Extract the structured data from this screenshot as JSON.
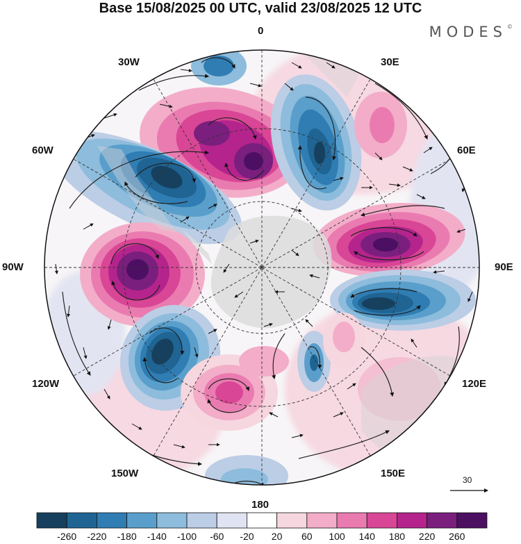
{
  "title": "Base 15/08/2025 00 UTC, valid 23/08/2025 12 UTC",
  "logo": "MODES",
  "logo_mark": "©",
  "grid_labels": {
    "lon_0": "0",
    "lon_30e": "30E",
    "lon_60e": "60E",
    "lon_90e": "90E",
    "lon_120e": "120E",
    "lon_150e": "150E",
    "lon_180": "180",
    "lon_150w": "150W",
    "lon_120w": "120W",
    "lon_90w": "90W",
    "lon_60w": "60W",
    "lon_30w": "30W"
  },
  "reference_vector": "30",
  "colorbar": {
    "ticks": [
      "-260",
      "-220",
      "-180",
      "-140",
      "-100",
      "-60",
      "-20",
      "20",
      "60",
      "100",
      "140",
      "180",
      "220",
      "260"
    ],
    "colors": [
      "#16405e",
      "#1f6493",
      "#2f7db3",
      "#5a9fcb",
      "#8dbcdc",
      "#bccde6",
      "#e0e3f1",
      "#ffffff",
      "#f6d6df",
      "#f3adc8",
      "#ea7bb0",
      "#d94696",
      "#b4248c",
      "#7a1f7e",
      "#4c0f62"
    ]
  },
  "chart_data": {
    "type": "heatmap",
    "projection": "south-polar stereographic",
    "title": "Base 15/08/2025 00 UTC, valid 23/08/2025 12 UTC",
    "field": "shaded anomaly with wind vectors",
    "vector_reference": 30,
    "anomalies": [
      {
        "sign": "positive",
        "near": "20W-0, mid-latitudes",
        "peak_class": "260"
      },
      {
        "sign": "negative",
        "near": "45W",
        "peak_class": "-260"
      },
      {
        "sign": "negative",
        "near": "15E",
        "peak_class": "-260"
      },
      {
        "sign": "positive",
        "near": "30E",
        "peak_class": "140"
      },
      {
        "sign": "positive",
        "near": "75E",
        "peak_class": "260"
      },
      {
        "sign": "negative",
        "near": "100E",
        "peak_class": "-260"
      },
      {
        "sign": "positive",
        "near": "90W",
        "peak_class": "260"
      },
      {
        "sign": "negative",
        "near": "120W",
        "peak_class": "-260"
      },
      {
        "sign": "positive",
        "near": "165W",
        "peak_class": "180"
      },
      {
        "sign": "negative",
        "near": "150E",
        "peak_class": "-140"
      },
      {
        "sign": "positive",
        "near": "120E",
        "peak_class": "100"
      },
      {
        "sign": "negative",
        "near": "175W",
        "peak_class": "-140"
      }
    ]
  }
}
